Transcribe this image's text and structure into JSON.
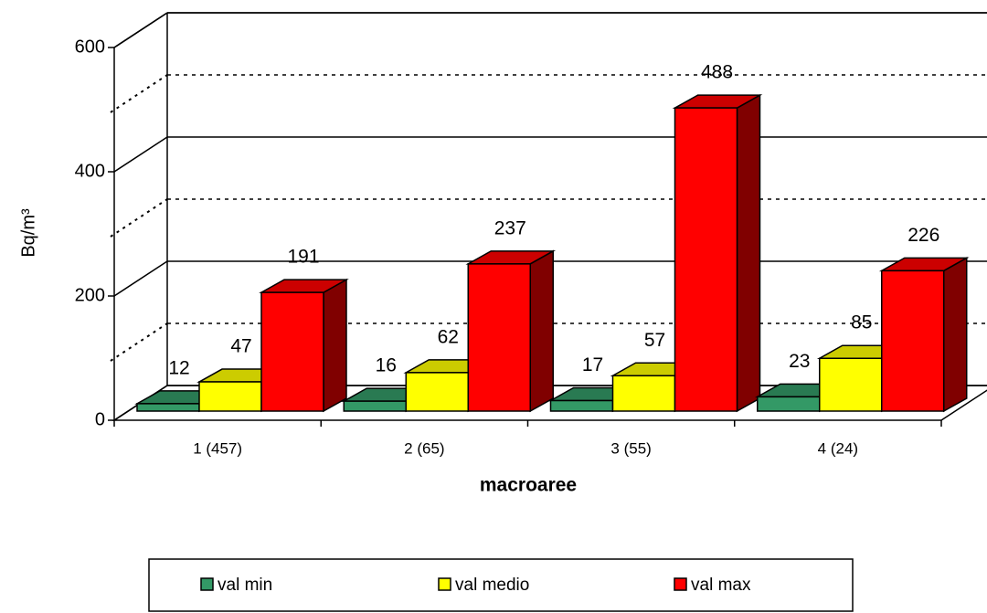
{
  "chart_data": {
    "type": "bar3d",
    "categories": [
      "1 (457)",
      "2 (65)",
      "3 (55)",
      "4 (24)"
    ],
    "series": [
      {
        "name": "val min",
        "color": "#339966",
        "values": [
          12,
          16,
          17,
          23
        ]
      },
      {
        "name": "val medio",
        "color": "#ffff00",
        "values": [
          47,
          62,
          57,
          85
        ]
      },
      {
        "name": "val max",
        "color": "#ff0000",
        "values": [
          191,
          237,
          488,
          226
        ]
      }
    ],
    "ylabel": "Bq/m³",
    "xlabel": "macroaree",
    "ylim": [
      0,
      600
    ],
    "yticks": [
      0,
      200,
      400,
      600
    ],
    "yminor_ticks": [
      100,
      300,
      500
    ],
    "grid": true,
    "legend": "bottom"
  }
}
